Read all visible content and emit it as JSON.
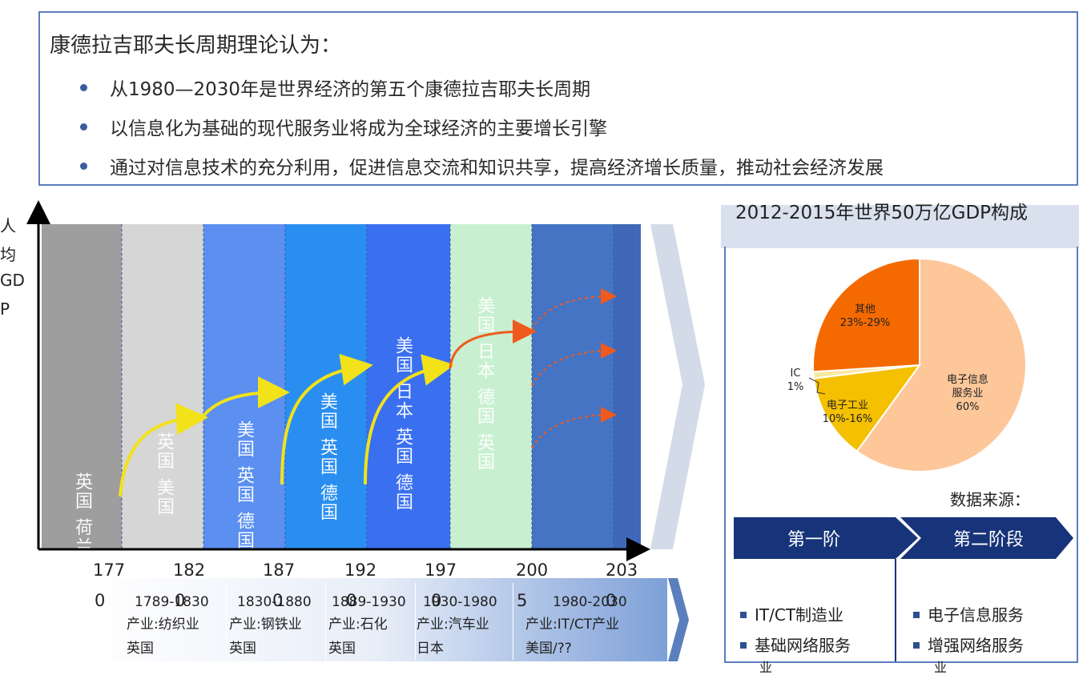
{
  "intro": {
    "title": "康德拉吉耶夫长周期理论认为：",
    "bullets": [
      "从1980—2030年是世界经济的第五个康德拉吉耶夫长周期",
      "以信息化为基础的现代服务业将成为全球经济的主要增长引擎",
      "通过对信息技术的充分利用，促进信息交流和知识共享，提高经济增长质量，推动社会经济发展"
    ]
  },
  "y_axis_label": [
    "人",
    "均",
    "GD",
    "P"
  ],
  "timeline": {
    "bands": [
      {
        "color": "#9e9e9e",
        "text": "英国 荷兰"
      },
      {
        "color": "#d6d6d6",
        "text": "英国 美国"
      },
      {
        "color": "#5b8ff0",
        "text": "美国 英国 德国 日本"
      },
      {
        "color": "#2a8ef0",
        "text": "美国 英国 德国"
      },
      {
        "color": "#3a6ff0",
        "text": "美国 日本 英国 德国"
      },
      {
        "color": "#c8f0d0",
        "text": "美国 日本 德国 英国"
      },
      {
        "color": "#4574c4",
        "text": ""
      },
      {
        "color": "#3f68b8",
        "text": ""
      }
    ],
    "ticks_row1": [
      "177",
      "182",
      "187",
      "192",
      "197",
      "200",
      "203"
    ],
    "ticks_row2": [
      "0",
      "0",
      "0",
      "0",
      "0",
      "5",
      "0"
    ],
    "periods": [
      {
        "years": "1789-1830",
        "industry": "产业:纺织业",
        "country": "英国"
      },
      {
        "years": "1830-1880",
        "industry": "产业:钢铁业",
        "country": "英国"
      },
      {
        "years": "1889-1930",
        "industry": "产业:石化",
        "country": "英国"
      },
      {
        "years": "1930-1980",
        "industry": "产业:汽车业",
        "country": "日本"
      },
      {
        "years": "1980-2030",
        "industry": "产业:IT/CT产业",
        "country": "美国/??"
      }
    ]
  },
  "pie": {
    "title": "2012-2015年世界50万亿GDP构成",
    "slices": [
      {
        "label": "电子信息服务业",
        "value_text": "60%",
        "value": 60,
        "color": "#fdc79a"
      },
      {
        "label": "电子工业",
        "value_text": "10%-16%",
        "value": 13,
        "color": "#f5c000"
      },
      {
        "label": "IC",
        "value_text": "1%",
        "value": 1,
        "color": "#fde8a0"
      },
      {
        "label": "其他",
        "value_text": "23%-29%",
        "value": 26,
        "color": "#f46a00"
      }
    ],
    "source_label": "数据来源："
  },
  "stages": [
    {
      "label": "第一阶",
      "items": [
        "IT/CT制造业",
        "基础网络服务"
      ],
      "footer": "业"
    },
    {
      "label": "第二阶段",
      "items": [
        "电子信息服务",
        "增强网络服务"
      ],
      "footer": "业"
    }
  ]
}
